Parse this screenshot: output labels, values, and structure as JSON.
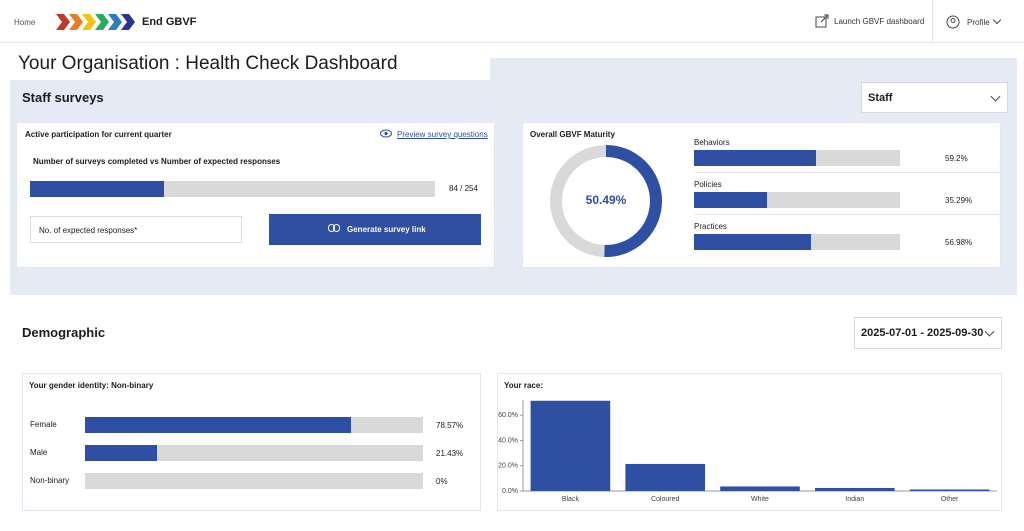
{
  "nav": {
    "home": "Home",
    "brand": "End GBVF",
    "launch": "Launch GBVF dashboard",
    "profile": "Profile"
  },
  "page_title": "Your Organisation : Health Check Dashboard",
  "staff_surveys": {
    "title": "Staff surveys",
    "filter": "Staff",
    "participation": {
      "title": "Active participation for current quarter",
      "preview_link": "Preview survey questions",
      "subtitle": "Number of surveys completed vs Number of expected responses",
      "values": [
        84,
        254
      ],
      "value_label": "84 / 254",
      "input_placeholder": "No. of expected responses*",
      "button": "Generate survey link"
    },
    "maturity": {
      "title": "Overall GBVF Maturity",
      "value": 50.49,
      "value_label": "50.49%",
      "categories": [
        "Behaviors",
        "Policies",
        "Practices"
      ],
      "values": [
        59.2,
        35.29,
        56.98
      ],
      "value_labels": [
        "59.2%",
        "35.29%",
        "56.98%"
      ]
    }
  },
  "demographic": {
    "title": "Demographic",
    "date_range": "2025-07-01 - 2025-09-30",
    "gender": {
      "title": "Your gender identity: Non-binary",
      "categories": [
        "Female",
        "Male",
        "Non-binary"
      ],
      "values": [
        78.57,
        21.43,
        0
      ],
      "value_labels": [
        "78.57%",
        "21.43%",
        "0%"
      ]
    },
    "race": {
      "title": "Your race:",
      "categories": [
        "Black",
        "Coloured",
        "White",
        "Indian",
        "Other"
      ],
      "values": [
        71.4,
        21.4,
        3.6,
        2.4,
        1.2
      ],
      "ylim": [
        0,
        72
      ],
      "yticks": [
        {
          "value": 0,
          "label": "0.0%"
        },
        {
          "value": 20,
          "label": "20.0%"
        },
        {
          "value": 40,
          "label": "40.0%"
        },
        {
          "value": 60,
          "label": "60.0%"
        }
      ]
    }
  }
}
